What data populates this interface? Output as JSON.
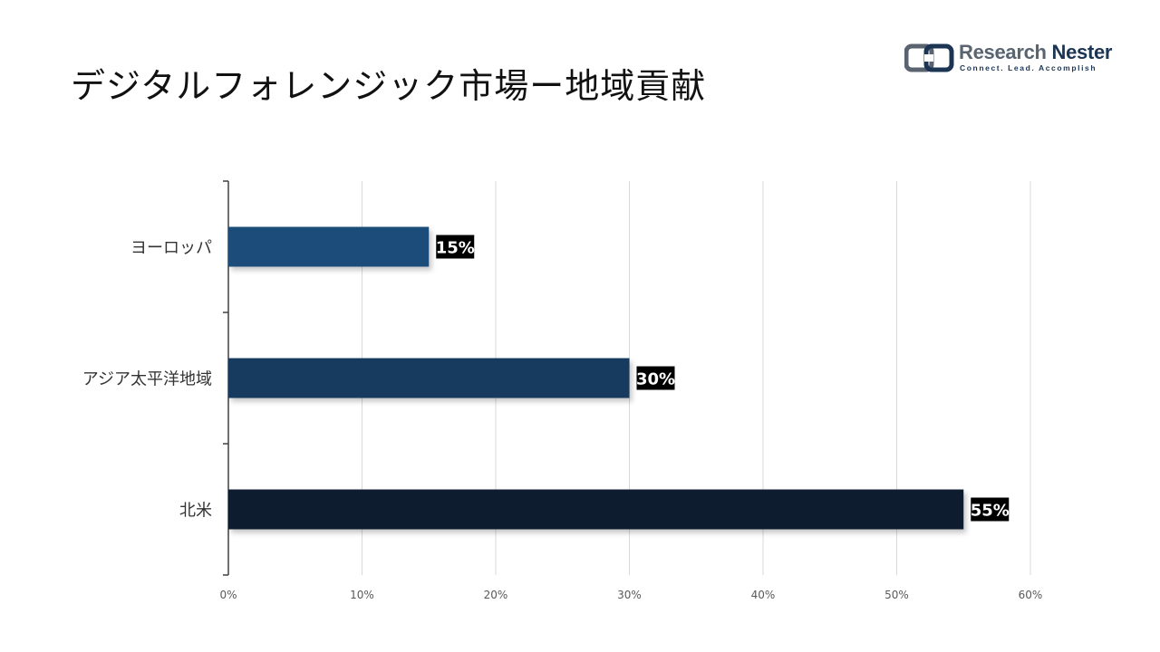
{
  "title": "デジタルフォレンジック市場ー地域貢献",
  "logo": {
    "name_part1": "Research",
    "name_part2": "Nester",
    "tagline": "Connect. Lead. Accomplish"
  },
  "chart_data": {
    "type": "bar",
    "orientation": "horizontal",
    "categories": [
      "ヨーロッパ",
      "アジア太平洋地域",
      "北米"
    ],
    "values": [
      15,
      30,
      55
    ],
    "data_labels": [
      "15%",
      "30%",
      "55%"
    ],
    "bar_colors": [
      "#1f4e7a",
      "#173a5e",
      "#0f1e2e"
    ],
    "xlim": [
      0,
      60
    ],
    "x_ticks": [
      0,
      10,
      20,
      30,
      40,
      50,
      60
    ],
    "x_tick_labels": [
      "0%",
      "10%",
      "20%",
      "30%",
      "40%",
      "50%",
      "60%"
    ],
    "grid": "vertical",
    "legend": "none"
  }
}
